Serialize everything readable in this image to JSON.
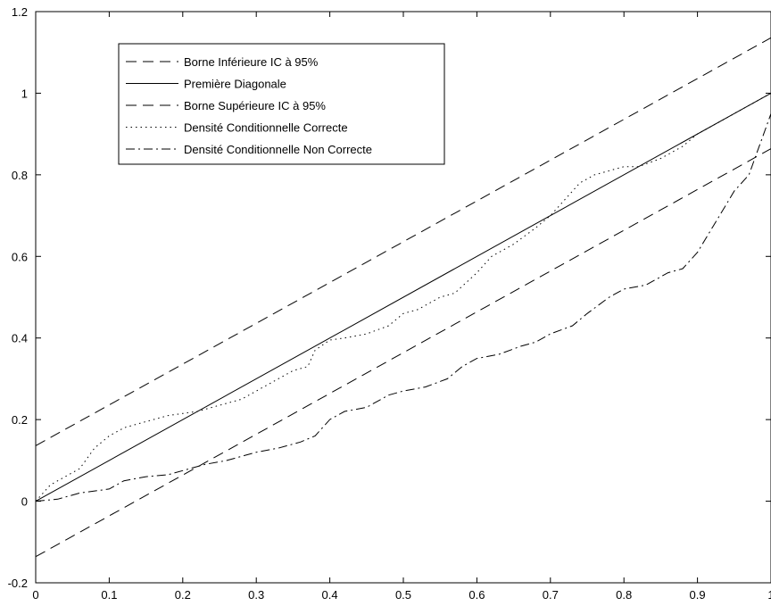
{
  "chart_data": {
    "type": "line",
    "title": "",
    "xlabel": "",
    "ylabel": "",
    "xlim": [
      0,
      1
    ],
    "ylim": [
      -0.2,
      1.2
    ],
    "grid": false,
    "legend_position": "top-left",
    "x_ticks": [
      0,
      0.1,
      0.2,
      0.3,
      0.4,
      0.5,
      0.6,
      0.7,
      0.8,
      0.9,
      1
    ],
    "x_tick_labels": [
      "0",
      "0.1",
      "0.2",
      "0.3",
      "0.4",
      "0.5",
      "0.6",
      "0.7",
      "0.8",
      "0.9",
      "1"
    ],
    "y_ticks": [
      -0.2,
      0,
      0.2,
      0.4,
      0.6,
      0.8,
      1,
      1.2
    ],
    "y_tick_labels": [
      "-0.2",
      "0",
      "0.2",
      "0.4",
      "0.6",
      "0.8",
      "1",
      "1.2"
    ],
    "series": [
      {
        "name": "Borne Inférieure IC à 95%",
        "style": "dashed",
        "color": "#000000",
        "points": [
          [
            0,
            0.136
          ],
          [
            1,
            1.136
          ]
        ]
      },
      {
        "name": "Première Diagonale",
        "style": "solid",
        "color": "#000000",
        "points": [
          [
            0,
            0
          ],
          [
            1,
            1
          ]
        ]
      },
      {
        "name": "Borne Supérieure IC à 95%",
        "style": "dashed",
        "color": "#000000",
        "points": [
          [
            0,
            -0.136
          ],
          [
            1,
            0.864
          ]
        ]
      },
      {
        "name": "Densité Conditionnelle Correcte",
        "style": "dotted",
        "color": "#000000",
        "points": [
          [
            0,
            0
          ],
          [
            0.02,
            0.04
          ],
          [
            0.04,
            0.06
          ],
          [
            0.06,
            0.08
          ],
          [
            0.08,
            0.13
          ],
          [
            0.1,
            0.16
          ],
          [
            0.12,
            0.18
          ],
          [
            0.15,
            0.195
          ],
          [
            0.18,
            0.21
          ],
          [
            0.2,
            0.215
          ],
          [
            0.22,
            0.22
          ],
          [
            0.25,
            0.235
          ],
          [
            0.28,
            0.25
          ],
          [
            0.3,
            0.27
          ],
          [
            0.32,
            0.29
          ],
          [
            0.35,
            0.32
          ],
          [
            0.37,
            0.33
          ],
          [
            0.38,
            0.37
          ],
          [
            0.4,
            0.395
          ],
          [
            0.42,
            0.4
          ],
          [
            0.45,
            0.41
          ],
          [
            0.48,
            0.43
          ],
          [
            0.5,
            0.46
          ],
          [
            0.52,
            0.47
          ],
          [
            0.55,
            0.5
          ],
          [
            0.57,
            0.51
          ],
          [
            0.6,
            0.56
          ],
          [
            0.62,
            0.6
          ],
          [
            0.65,
            0.63
          ],
          [
            0.68,
            0.67
          ],
          [
            0.7,
            0.7
          ],
          [
            0.72,
            0.74
          ],
          [
            0.74,
            0.78
          ],
          [
            0.76,
            0.8
          ],
          [
            0.78,
            0.81
          ],
          [
            0.8,
            0.82
          ],
          [
            0.82,
            0.82
          ],
          [
            0.85,
            0.84
          ],
          [
            0.88,
            0.87
          ],
          [
            0.9,
            0.9
          ],
          [
            0.92,
            0.92
          ],
          [
            0.94,
            0.94
          ],
          [
            0.96,
            0.96
          ],
          [
            0.98,
            0.98
          ],
          [
            1,
            1
          ]
        ]
      },
      {
        "name": "Densité Conditionnelle Non Correcte",
        "style": "dashdot",
        "color": "#000000",
        "points": [
          [
            0,
            0
          ],
          [
            0.03,
            0.005
          ],
          [
            0.06,
            0.02
          ],
          [
            0.1,
            0.03
          ],
          [
            0.12,
            0.05
          ],
          [
            0.15,
            0.06
          ],
          [
            0.18,
            0.065
          ],
          [
            0.2,
            0.075
          ],
          [
            0.23,
            0.09
          ],
          [
            0.26,
            0.1
          ],
          [
            0.28,
            0.11
          ],
          [
            0.3,
            0.12
          ],
          [
            0.33,
            0.13
          ],
          [
            0.36,
            0.145
          ],
          [
            0.38,
            0.16
          ],
          [
            0.4,
            0.2
          ],
          [
            0.42,
            0.22
          ],
          [
            0.45,
            0.23
          ],
          [
            0.48,
            0.26
          ],
          [
            0.5,
            0.27
          ],
          [
            0.53,
            0.28
          ],
          [
            0.56,
            0.3
          ],
          [
            0.58,
            0.33
          ],
          [
            0.6,
            0.35
          ],
          [
            0.63,
            0.36
          ],
          [
            0.66,
            0.38
          ],
          [
            0.68,
            0.39
          ],
          [
            0.7,
            0.41
          ],
          [
            0.73,
            0.43
          ],
          [
            0.75,
            0.46
          ],
          [
            0.78,
            0.5
          ],
          [
            0.8,
            0.52
          ],
          [
            0.83,
            0.53
          ],
          [
            0.86,
            0.56
          ],
          [
            0.88,
            0.57
          ],
          [
            0.9,
            0.61
          ],
          [
            0.92,
            0.67
          ],
          [
            0.94,
            0.73
          ],
          [
            0.95,
            0.76
          ],
          [
            0.97,
            0.8
          ],
          [
            0.98,
            0.85
          ],
          [
            0.99,
            0.9
          ],
          [
            1,
            0.95
          ]
        ]
      }
    ]
  }
}
